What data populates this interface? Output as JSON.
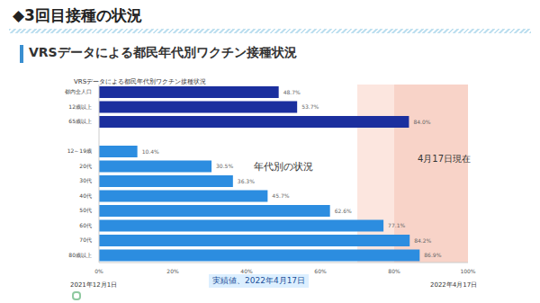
{
  "header": {
    "title": "◆3回目接種の状況",
    "subtitle": "VRSデータによる都民年代別ワクチン接種状況"
  },
  "chart_data": {
    "type": "bar",
    "orientation": "horizontal",
    "title": "VRSデータによる都民年代別ワクチン接種状況",
    "categories": [
      "都内全人口",
      "12歳以上",
      "65歳以上",
      null,
      "12～19歳",
      "20代",
      "30代",
      "40代",
      "50代",
      "60代",
      "70代",
      "80歳以上"
    ],
    "values": [
      48.7,
      53.7,
      84.0,
      null,
      10.4,
      30.5,
      36.3,
      45.7,
      62.6,
      77.1,
      84.2,
      86.9
    ],
    "value_labels": [
      "48.7%",
      "53.7%",
      "84.0%",
      null,
      "10.4%",
      "30.5%",
      "36.3%",
      "45.7%",
      "62.6%",
      "77.1%",
      "84.2%",
      "86.9%"
    ],
    "colors": [
      "#1b2f9e",
      "#1b2f9e",
      "#1b2f9e",
      null,
      "#2c8de0",
      "#2c8de0",
      "#2c8de0",
      "#2c8de0",
      "#2c8de0",
      "#2c8de0",
      "#2c8de0",
      "#2c8de0"
    ],
    "xlim": [
      0,
      100
    ],
    "xticks": [
      {
        "value": 0,
        "label": "0%"
      },
      {
        "value": 20,
        "label": "20%"
      },
      {
        "value": 40,
        "label": "40%"
      },
      {
        "value": 60,
        "label": "60%"
      },
      {
        "value": 80,
        "label": "80%"
      },
      {
        "value": 100,
        "label": "100%"
      }
    ],
    "grid": false,
    "data_labels": true,
    "annotations": [
      "年代別の状況",
      "4月17日現在",
      "2021年12月1日",
      "実績値、2022年4月17日",
      "2022年4月17日"
    ],
    "bands": [
      {
        "from": 70,
        "to": 100,
        "color": "#fce6df"
      },
      {
        "from": 80,
        "to": 100,
        "color": "#f8d3c8"
      }
    ]
  }
}
